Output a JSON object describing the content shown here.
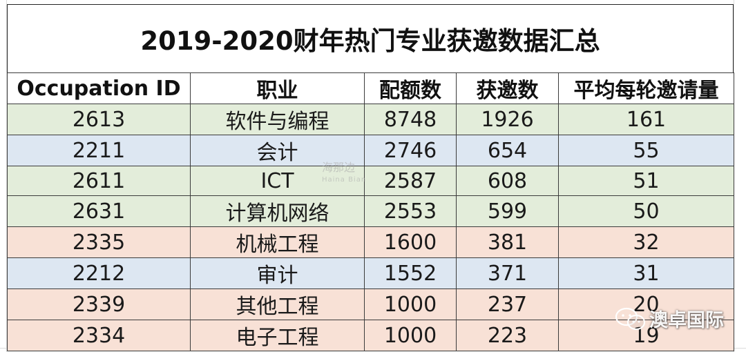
{
  "table": {
    "title": "2019-2020财年热门专业获邀数据汇总",
    "headers": [
      "Occupation ID",
      "职业",
      "配额数",
      "获邀数",
      "平均每轮邀请量"
    ],
    "rows": [
      {
        "id": "2613",
        "occupation": "软件与编程",
        "quota": "8748",
        "invited": "1926",
        "avg": "161",
        "color": "#e3edda"
      },
      {
        "id": "2211",
        "occupation": "会计",
        "quota": "2746",
        "invited": "654",
        "avg": "55",
        "color": "#dde7f2"
      },
      {
        "id": "2611",
        "occupation": "ICT",
        "quota": "2587",
        "invited": "608",
        "avg": "51",
        "color": "#e3edda"
      },
      {
        "id": "2631",
        "occupation": "计算机网络",
        "quota": "2553",
        "invited": "599",
        "avg": "50",
        "color": "#e3edda"
      },
      {
        "id": "2335",
        "occupation": "机械工程",
        "quota": "1600",
        "invited": "381",
        "avg": "32",
        "color": "#f8e1d6"
      },
      {
        "id": "2212",
        "occupation": "审计",
        "quota": "1552",
        "invited": "371",
        "avg": "31",
        "color": "#dde7f2"
      },
      {
        "id": "2339",
        "occupation": "其他工程",
        "quota": "1000",
        "invited": "237",
        "avg": "20",
        "color": "#f8e1d6"
      },
      {
        "id": "2334",
        "occupation": "电子工程",
        "quota": "1000",
        "invited": "223",
        "avg": "19",
        "color": "#f8e1d6"
      }
    ]
  },
  "watermark": {
    "line1": "海那边",
    "line2": "Haina Bian"
  },
  "brand": {
    "name": "澳卓国际",
    "icon": "wechat-icon"
  }
}
